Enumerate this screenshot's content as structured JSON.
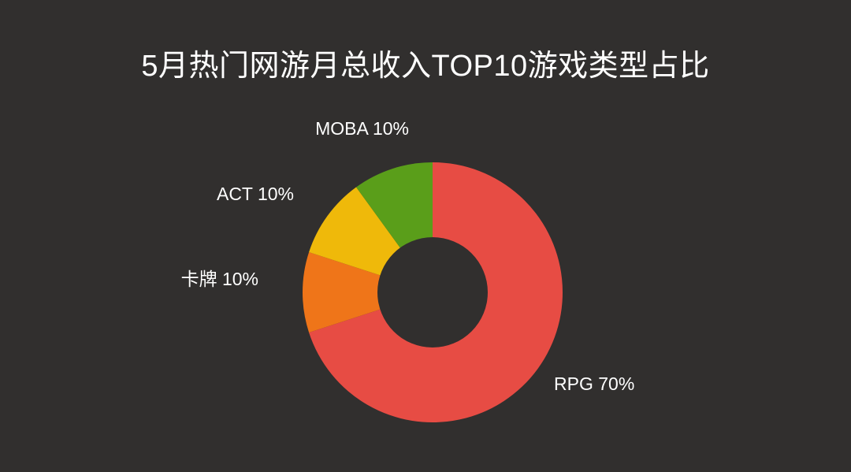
{
  "chart_data": {
    "type": "pie",
    "title": "5月热门网游月总收入TOP10游戏类型占比",
    "slices": [
      {
        "label": "RPG",
        "value": 70,
        "display": "RPG 70%",
        "color": "#e74c44"
      },
      {
        "label": "卡牌",
        "value": 10,
        "display": "卡牌 10%",
        "color": "#ef7519"
      },
      {
        "label": "ACT",
        "value": 10,
        "display": "ACT 10%",
        "color": "#efb90a"
      },
      {
        "label": "MOBA",
        "value": 10,
        "display": "MOBA 10%",
        "color": "#5a9e1a"
      }
    ],
    "style": "donut",
    "background": "#312f2e"
  }
}
